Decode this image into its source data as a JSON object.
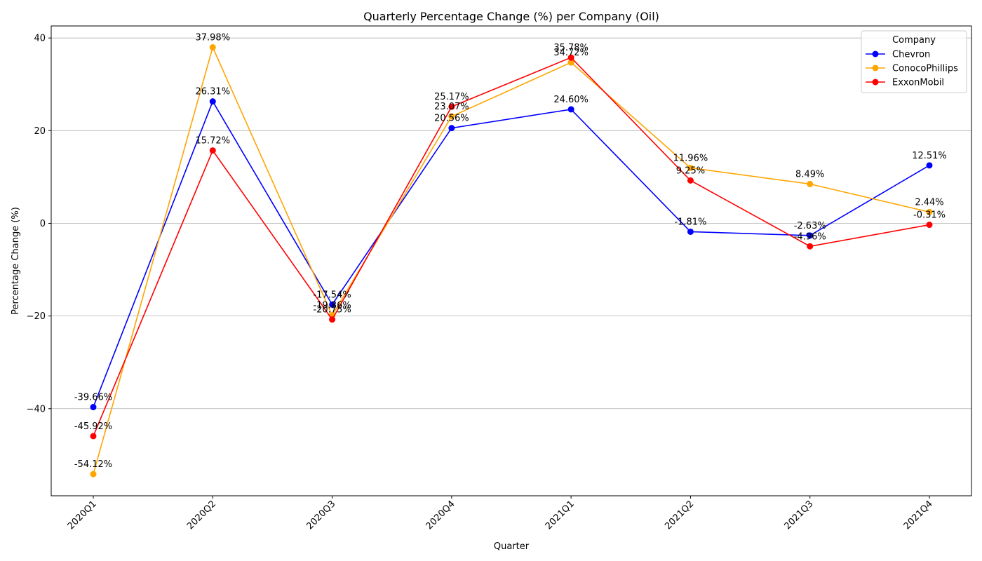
{
  "chart_data": {
    "type": "line",
    "title": "Quarterly Percentage Change (%) per Company (Oil)",
    "xlabel": "Quarter",
    "ylabel": "Percentage Change (%)",
    "categories": [
      "2020Q1",
      "2020Q2",
      "2020Q3",
      "2020Q4",
      "2021Q1",
      "2021Q2",
      "2021Q3",
      "2021Q4"
    ],
    "ylim": [
      -58.8,
      42.6
    ],
    "yticks": [
      -40,
      -20,
      0,
      20,
      40
    ],
    "grid": "horizontal",
    "legend": {
      "title": "Company",
      "position": "top-right"
    },
    "series": [
      {
        "name": "Chevron",
        "color": "#0000ff",
        "values": [
          -39.66,
          26.31,
          -17.54,
          20.56,
          24.6,
          -1.81,
          -2.63,
          12.51
        ],
        "labels": [
          "-39.66%",
          "26.31%",
          "-17.54%",
          "20.56%",
          "24.60%",
          "-1.81%",
          "-2.63%",
          "12.51%"
        ]
      },
      {
        "name": "ConocoPhillips",
        "color": "#ffa500",
        "values": [
          -54.12,
          37.98,
          -19.86,
          23.07,
          34.72,
          11.96,
          8.49,
          2.44
        ],
        "labels": [
          "-54.12%",
          "37.98%",
          "-19.86%",
          "23.07%",
          "34.72%",
          "11.96%",
          "8.49%",
          "2.44%"
        ]
      },
      {
        "name": "ExxonMobil",
        "color": "#ff0000",
        "values": [
          -45.92,
          15.72,
          -20.75,
          25.17,
          35.78,
          9.25,
          -4.96,
          -0.31
        ],
        "labels": [
          "-45.92%",
          "15.72%",
          "-20.75%",
          "25.17%",
          "35.78%",
          "9.25%",
          "-4.96%",
          "-0.31%"
        ]
      }
    ]
  }
}
